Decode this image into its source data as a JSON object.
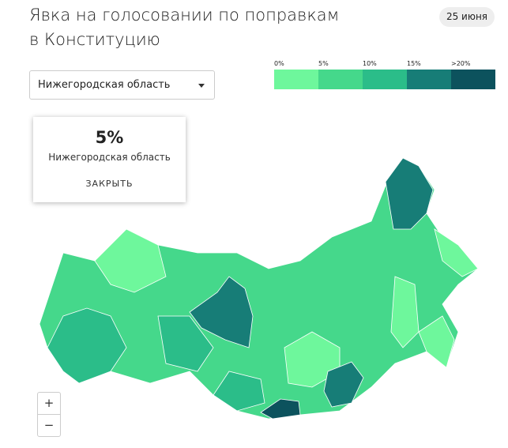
{
  "header": {
    "title_line1": "Явка на голосовании по поправкам",
    "title_line2": "в Конституцию",
    "date": "25 июня"
  },
  "selector": {
    "label": "Нижегородская область"
  },
  "legend": {
    "items": [
      {
        "label": "0%",
        "color": "#6ef79c"
      },
      {
        "label": "5%",
        "color": "#45d88b"
      },
      {
        "label": "10%",
        "color": "#2bbd89"
      },
      {
        "label": "15%",
        "color": "#177d77"
      },
      {
        "label": ">20%",
        "color": "#0c525d"
      }
    ]
  },
  "tooltip": {
    "value": "5%",
    "region": "Нижегородская область",
    "close": "ЗАКРЫТЬ"
  },
  "zoom": {
    "in": "+",
    "out": "−"
  }
}
